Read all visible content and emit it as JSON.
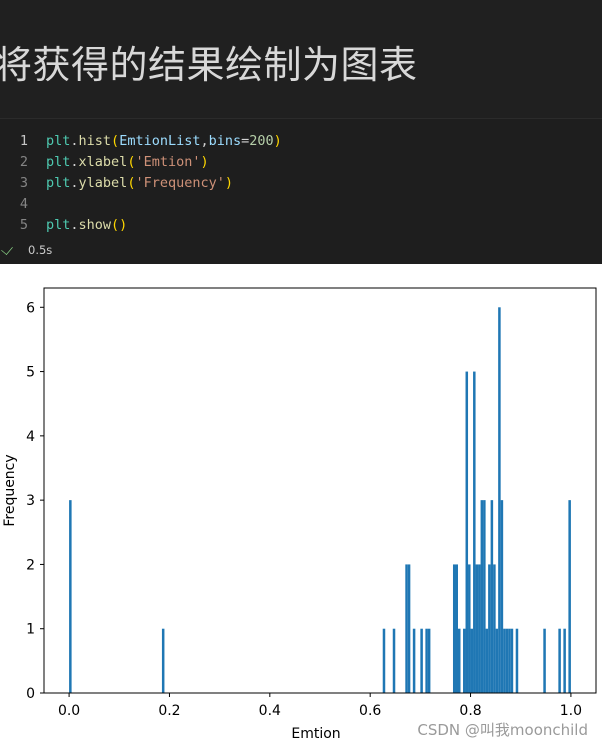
{
  "heading": "将获得的结果绘制为图表",
  "code_lines": [
    {
      "num": "1",
      "tokens": [
        [
          "fn",
          "plt"
        ],
        [
          "dot",
          "."
        ],
        [
          "call",
          "hist"
        ],
        [
          "paren",
          "("
        ],
        [
          "var",
          "EmtionList"
        ],
        [
          "op",
          ","
        ],
        [
          "var",
          "bins"
        ],
        [
          "op",
          "="
        ],
        [
          "num",
          "200"
        ],
        [
          "paren",
          ")"
        ]
      ]
    },
    {
      "num": "2",
      "tokens": [
        [
          "fn",
          "plt"
        ],
        [
          "dot",
          "."
        ],
        [
          "call",
          "xlabel"
        ],
        [
          "paren",
          "("
        ],
        [
          "str",
          "'Emtion'"
        ],
        [
          "paren",
          ")"
        ]
      ]
    },
    {
      "num": "3",
      "tokens": [
        [
          "fn",
          "plt"
        ],
        [
          "dot",
          "."
        ],
        [
          "call",
          "ylabel"
        ],
        [
          "paren",
          "("
        ],
        [
          "str",
          "'Frequency'"
        ],
        [
          "paren",
          ")"
        ]
      ]
    },
    {
      "num": "4",
      "tokens": []
    },
    {
      "num": "5",
      "tokens": [
        [
          "fn",
          "plt"
        ],
        [
          "dot",
          "."
        ],
        [
          "call",
          "show"
        ],
        [
          "paren",
          "()"
        ]
      ]
    }
  ],
  "status": {
    "icon": "check-icon",
    "time": "0.5s"
  },
  "colors": {
    "bar": "#1f77b4",
    "check": "#89d185"
  },
  "chart_data": {
    "type": "bar",
    "xlabel": "Emtion",
    "ylabel": "Frequency",
    "xlim": [
      -0.05,
      1.05
    ],
    "ylim": [
      0,
      6.3
    ],
    "xticks": [
      0.0,
      0.2,
      0.4,
      0.6,
      0.8,
      1.0
    ],
    "xtick_labels": [
      "0.0",
      "0.2",
      "0.4",
      "0.6",
      "0.8",
      "1.0"
    ],
    "yticks": [
      0,
      1,
      2,
      3,
      4,
      5,
      6
    ],
    "ytick_labels": [
      "0",
      "1",
      "2",
      "3",
      "4",
      "5",
      "6"
    ],
    "grid": false,
    "bin_width": 0.005,
    "bins": [
      {
        "x": 0.0,
        "count": 3
      },
      {
        "x": 0.185,
        "count": 1
      },
      {
        "x": 0.625,
        "count": 1
      },
      {
        "x": 0.645,
        "count": 1
      },
      {
        "x": 0.67,
        "count": 2
      },
      {
        "x": 0.675,
        "count": 2
      },
      {
        "x": 0.685,
        "count": 1
      },
      {
        "x": 0.7,
        "count": 1
      },
      {
        "x": 0.71,
        "count": 1
      },
      {
        "x": 0.715,
        "count": 1
      },
      {
        "x": 0.765,
        "count": 2
      },
      {
        "x": 0.77,
        "count": 2
      },
      {
        "x": 0.775,
        "count": 1
      },
      {
        "x": 0.785,
        "count": 1
      },
      {
        "x": 0.79,
        "count": 5
      },
      {
        "x": 0.795,
        "count": 2
      },
      {
        "x": 0.8,
        "count": 1
      },
      {
        "x": 0.805,
        "count": 5
      },
      {
        "x": 0.81,
        "count": 2
      },
      {
        "x": 0.815,
        "count": 2
      },
      {
        "x": 0.82,
        "count": 3
      },
      {
        "x": 0.825,
        "count": 3
      },
      {
        "x": 0.83,
        "count": 1
      },
      {
        "x": 0.835,
        "count": 2
      },
      {
        "x": 0.84,
        "count": 3
      },
      {
        "x": 0.845,
        "count": 2
      },
      {
        "x": 0.85,
        "count": 1
      },
      {
        "x": 0.855,
        "count": 6
      },
      {
        "x": 0.86,
        "count": 3
      },
      {
        "x": 0.865,
        "count": 1
      },
      {
        "x": 0.87,
        "count": 1
      },
      {
        "x": 0.875,
        "count": 1
      },
      {
        "x": 0.88,
        "count": 1
      },
      {
        "x": 0.89,
        "count": 1
      },
      {
        "x": 0.945,
        "count": 1
      },
      {
        "x": 0.975,
        "count": 1
      },
      {
        "x": 0.985,
        "count": 1
      },
      {
        "x": 0.995,
        "count": 3
      }
    ]
  },
  "watermark": "CSDN @叫我moonchild"
}
